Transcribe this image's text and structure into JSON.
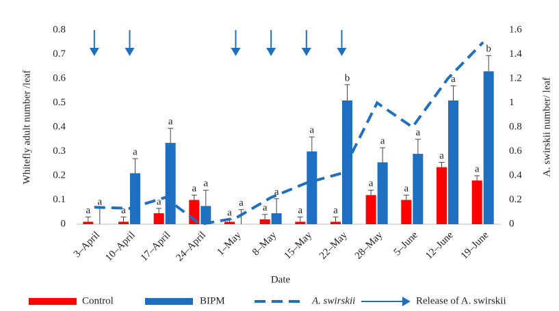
{
  "chart_data": {
    "type": "bar-line",
    "x_label": "Date",
    "y_label": "Whitefly adult number /leaf",
    "y2_label": "A. swirskii number/ leaf",
    "categories": [
      "3–April",
      "10–April",
      "17–April",
      "24–April",
      "1–May",
      "8–May",
      "15–May",
      "22–May",
      "28–May",
      "5–June",
      "12–June",
      "19–June"
    ],
    "series": [
      {
        "name": "Control",
        "type": "bar",
        "color": "#ff0000",
        "values": [
          0.01,
          0.01,
          0.045,
          0.1,
          0.01,
          0.02,
          0.01,
          0.01,
          0.12,
          0.1,
          0.235,
          0.18
        ],
        "errors": [
          0.02,
          0.02,
          0.02,
          0.02,
          0.01,
          0.02,
          0.02,
          0.02,
          0.02,
          0.02,
          0.02,
          0.02
        ],
        "letters": [
          "a",
          "a",
          "a",
          "a",
          "a",
          "a",
          "a",
          "a",
          "a",
          "a",
          "a",
          "a"
        ]
      },
      {
        "name": "BIPM",
        "type": "bar",
        "color": "#1f6fc0",
        "values": [
          0,
          0.21,
          0.335,
          0.075,
          0,
          0.045,
          0.3,
          0.51,
          0.255,
          0.29,
          0.51,
          0.63
        ],
        "errors": [
          0.065,
          0.06,
          0.06,
          0.065,
          0.06,
          0.06,
          0.06,
          0.065,
          0.06,
          0.06,
          0.06,
          0.065
        ],
        "letters": [
          "a",
          "a",
          "a",
          "a",
          "a",
          "a",
          "a",
          "b",
          "a",
          "a",
          "a",
          "b"
        ]
      },
      {
        "name": "A. swirskii",
        "type": "line",
        "axis": "y2",
        "color": "#1f6fc0",
        "values": [
          0.14,
          0.13,
          0.22,
          0,
          0.05,
          0.22,
          0.34,
          0.42,
          1.0,
          0.8,
          1.2,
          1.5
        ]
      }
    ],
    "release": {
      "name": "Release of A. swirskii",
      "color": "#1f6fc0",
      "categories": [
        "3–April",
        "10–April",
        "1–May",
        "8–May",
        "15–May",
        "22–May"
      ]
    },
    "ylim": [
      0,
      0.8
    ],
    "yticks": [
      0,
      0.1,
      0.2,
      0.3,
      0.4,
      0.5,
      0.6,
      0.7,
      0.8
    ],
    "y2lim": [
      0,
      1.6
    ],
    "y2ticks": [
      0,
      0.2,
      0.4,
      0.6,
      0.8,
      1,
      1.2,
      1.4,
      1.6
    ]
  }
}
